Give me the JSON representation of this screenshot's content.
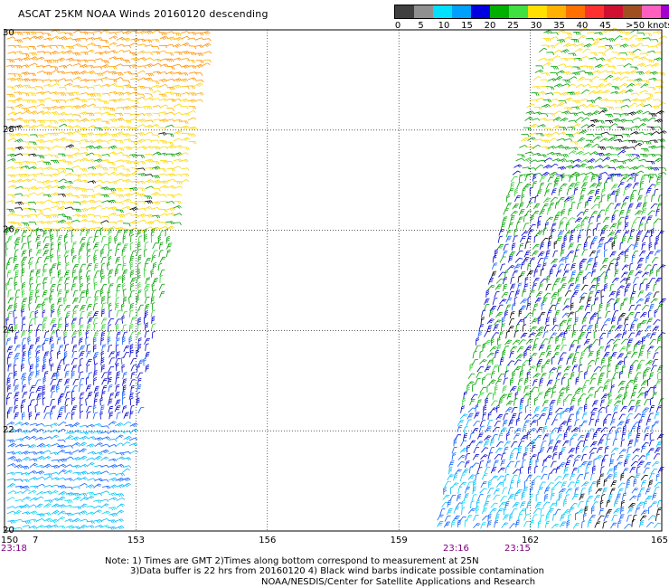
{
  "title": "ASCAT 25KM NOAA Winds 20160120 descending",
  "legend": {
    "colors": [
      "#404040",
      "#909090",
      "#00e0ff",
      "#00a0ff",
      "#0000e0",
      "#00b000",
      "#40e040",
      "#ffe000",
      "#ffb000",
      "#ff7000",
      "#ff3030",
      "#d01030",
      "#a05020",
      "#ff60c0",
      "#a000d0",
      "#600080"
    ],
    "ticks": [
      "0",
      "5",
      "10",
      "15",
      "20",
      "25",
      "30",
      "35",
      "40",
      "45",
      ">50 knots"
    ]
  },
  "axes": {
    "lon_labels": [
      "150",
      "153",
      "156",
      "159",
      "162",
      "165"
    ],
    "lat_labels": [
      "30",
      "28",
      "26",
      "24",
      "22",
      "20"
    ],
    "extra_label": "7"
  },
  "times": [
    "23:18",
    "23:16",
    "23:15"
  ],
  "notes": [
    "Note: 1) Times are GMT 2)Times along bottom correspond to measurement at 25N",
    "3)Data buffer is 22 hrs from 20160120 4) Black wind barbs indicate possible contamination",
    "NOAA/NESDIS/Center for Satellite Applications and Research"
  ]
}
